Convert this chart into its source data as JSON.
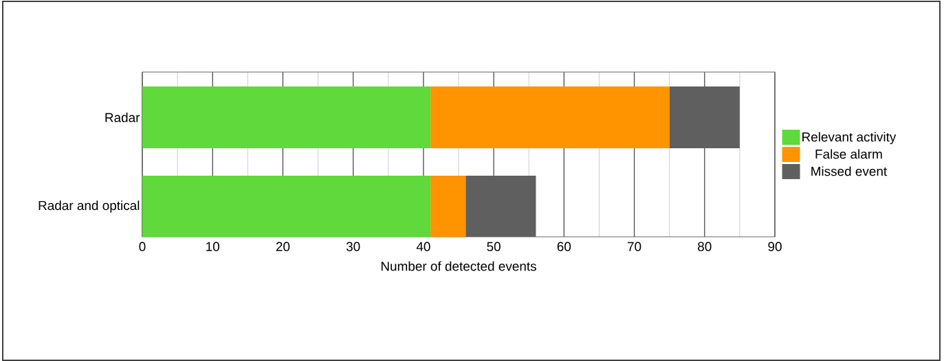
{
  "chart_data": {
    "type": "bar",
    "orientation": "horizontal",
    "stacked": true,
    "xlabel": "Number of detected events",
    "categories": [
      "Radar",
      "Radar and optical"
    ],
    "series": [
      {
        "name": "Relevant activity",
        "color": "#5fd93b",
        "values": [
          41,
          41
        ]
      },
      {
        "name": "False alarm",
        "color": "#ff9300",
        "values": [
          34,
          5
        ]
      },
      {
        "name": "Missed event",
        "color": "#5f5f5f",
        "values": [
          10,
          10
        ]
      }
    ],
    "xlim": [
      0,
      90
    ],
    "xticks": [
      0,
      10,
      20,
      30,
      40,
      50,
      60,
      70,
      80,
      90
    ],
    "grid": "x",
    "legend": "right"
  }
}
